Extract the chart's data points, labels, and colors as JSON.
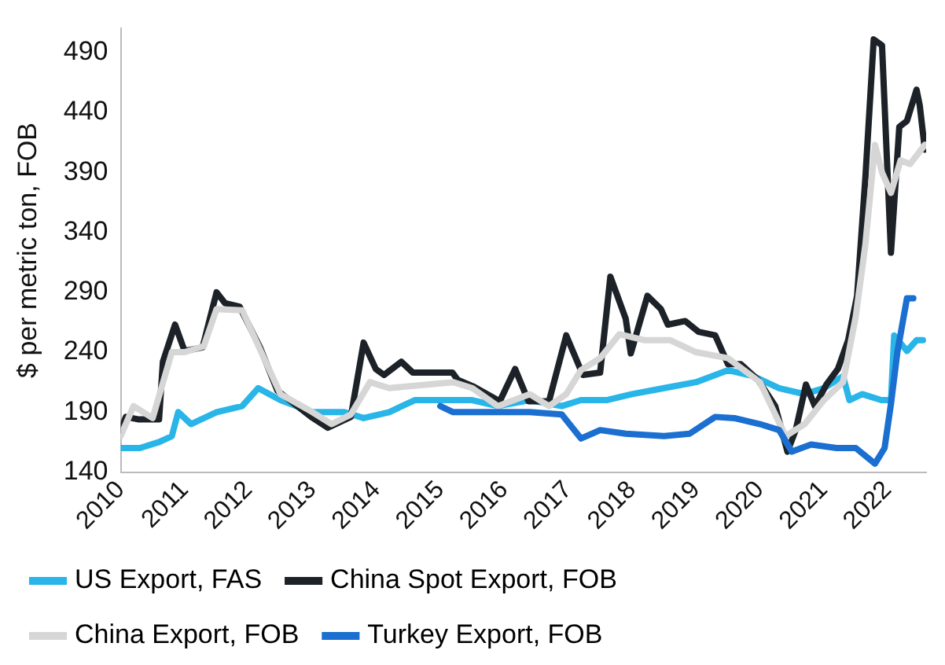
{
  "chart_data": {
    "type": "line",
    "ylabel": "$ per metric ton, FOB",
    "xlim": [
      2010,
      2022.6
    ],
    "xticks": [
      2010,
      2011,
      2012,
      2013,
      2014,
      2015,
      2016,
      2017,
      2018,
      2019,
      2020,
      2021,
      2022
    ],
    "ylim": [
      140,
      510
    ],
    "yticks": [
      140,
      190,
      240,
      290,
      340,
      390,
      440,
      490
    ],
    "grid": false,
    "legend": "bottom",
    "marker": "none",
    "line_style": "solid",
    "series": [
      {
        "name": "US Export, FAS",
        "color": "#29b5e8",
        "x": [
          2010.0,
          2010.3,
          2010.6,
          2010.8,
          2010.9,
          2011.1,
          2011.5,
          2011.9,
          2012.15,
          2012.5,
          2013.0,
          2013.5,
          2013.8,
          2014.2,
          2014.6,
          2015.0,
          2015.5,
          2015.9,
          2016.4,
          2016.9,
          2017.2,
          2017.6,
          2018.0,
          2018.5,
          2019.0,
          2019.5,
          2019.9,
          2020.3,
          2020.7,
          2021.0,
          2021.3,
          2021.4,
          2021.6,
          2021.9,
          2022.05,
          2022.1,
          2022.3,
          2022.45,
          2022.55
        ],
        "values": [
          160,
          160,
          165,
          170,
          190,
          180,
          190,
          195,
          210,
          200,
          190,
          190,
          185,
          190,
          200,
          200,
          200,
          195,
          200,
          195,
          200,
          200,
          205,
          210,
          215,
          225,
          220,
          210,
          205,
          210,
          220,
          200,
          205,
          200,
          200,
          254,
          241,
          250,
          250
        ]
      },
      {
        "name": "China Spot Export, FOB",
        "color": "#1c2228",
        "x": [
          2010.0,
          2010.08,
          2010.27,
          2010.6,
          2010.66,
          2010.85,
          2011.0,
          2011.28,
          2011.5,
          2011.63,
          2011.86,
          2012.18,
          2012.45,
          2012.98,
          2013.24,
          2013.6,
          2013.8,
          2013.99,
          2014.12,
          2014.39,
          2014.57,
          2015.19,
          2015.27,
          2015.53,
          2015.93,
          2016.17,
          2016.38,
          2016.7,
          2016.97,
          2017.23,
          2017.5,
          2017.66,
          2017.9,
          2017.98,
          2018.24,
          2018.45,
          2018.56,
          2018.83,
          2019.04,
          2019.3,
          2019.5,
          2019.7,
          2019.97,
          2020.24,
          2020.43,
          2020.56,
          2020.72,
          2020.86,
          2021.04,
          2021.22,
          2021.38,
          2021.52,
          2021.65,
          2021.78,
          2021.91,
          2022.05,
          2022.18,
          2022.3,
          2022.45,
          2022.5,
          2022.58
        ],
        "values": [
          175,
          186,
          184,
          184,
          232,
          263,
          241,
          244,
          290,
          281,
          278,
          244,
          208,
          186,
          177,
          186,
          248,
          226,
          221,
          232,
          223,
          223,
          217,
          211,
          199,
          226,
          199,
          199,
          254,
          221,
          223,
          303,
          268,
          239,
          287,
          276,
          263,
          266,
          257,
          254,
          230,
          230,
          217,
          195,
          157,
          175,
          213,
          195,
          213,
          226,
          250,
          287,
          386,
          501,
          496,
          323,
          428,
          433,
          459,
          446,
          409
        ]
      },
      {
        "name": "China Export, FOB",
        "color": "#d6d6d6",
        "x": [
          2010.0,
          2010.2,
          2010.5,
          2010.8,
          2011.0,
          2011.3,
          2011.5,
          2011.9,
          2012.2,
          2012.5,
          2013.0,
          2013.3,
          2013.6,
          2013.9,
          2014.2,
          2015.2,
          2015.5,
          2015.9,
          2016.4,
          2016.7,
          2016.97,
          2017.2,
          2017.5,
          2017.8,
          2018.2,
          2018.6,
          2019.0,
          2019.5,
          2020.0,
          2020.4,
          2020.7,
          2021.0,
          2021.3,
          2021.5,
          2021.65,
          2021.8,
          2021.91,
          2022.05,
          2022.2,
          2022.35,
          2022.58
        ],
        "values": [
          170,
          195,
          185,
          240,
          240,
          245,
          276,
          275,
          240,
          205,
          190,
          180,
          188,
          215,
          210,
          215,
          210,
          195,
          205,
          195,
          205,
          225,
          235,
          255,
          250,
          250,
          240,
          235,
          215,
          170,
          180,
          200,
          215,
          270,
          330,
          413,
          390,
          373,
          400,
          397,
          413
        ]
      },
      {
        "name": "Turkey Export, FOB",
        "color": "#1a6fd0",
        "x": [
          2015.0,
          2015.2,
          2015.8,
          2016.4,
          2016.9,
          2017.2,
          2017.5,
          2017.9,
          2018.5,
          2018.9,
          2019.3,
          2019.6,
          2020.0,
          2020.3,
          2020.5,
          2020.8,
          2021.2,
          2021.5,
          2021.8,
          2021.95,
          2022.05,
          2022.15,
          2022.3,
          2022.4
        ],
        "values": [
          195,
          190,
          190,
          190,
          188,
          168,
          175,
          172,
          170,
          172,
          186,
          185,
          180,
          175,
          157,
          163,
          160,
          160,
          147,
          160,
          197,
          240,
          285,
          285
        ]
      }
    ]
  }
}
